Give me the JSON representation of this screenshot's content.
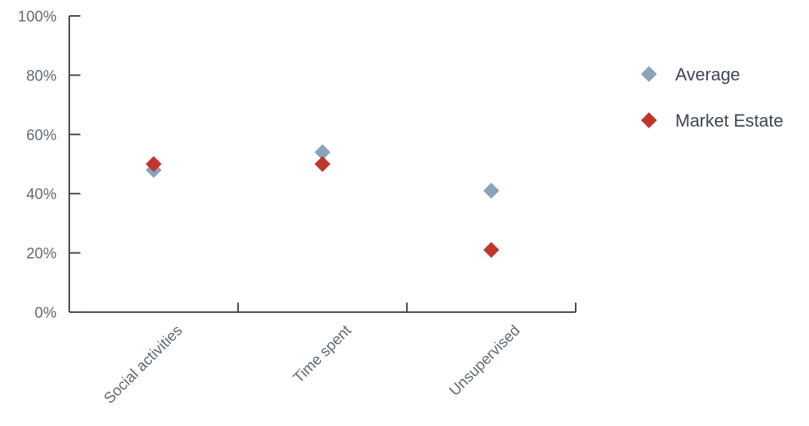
{
  "chart_data": {
    "type": "scatter",
    "categories": [
      "Social activities",
      "Time spent",
      "Unsupervised"
    ],
    "ylim": [
      0,
      100
    ],
    "yticks": [
      0,
      20,
      40,
      60,
      80,
      100
    ],
    "ytick_labels": [
      "0%",
      "20%",
      "40%",
      "60%",
      "80%",
      "100%"
    ],
    "grid": false,
    "legend_position": "right",
    "series": [
      {
        "name": "Average",
        "color": "#8aa3b8",
        "marker": "diamond",
        "values": [
          48,
          54,
          41
        ]
      },
      {
        "name": "Market Estate",
        "color": "#c0362c",
        "marker": "diamond",
        "values": [
          50,
          50,
          21
        ]
      }
    ]
  }
}
